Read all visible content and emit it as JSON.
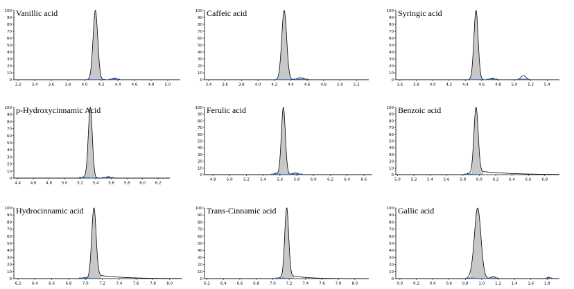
{
  "chart_data": [
    {
      "type": "line",
      "title": "Vanillic  acid",
      "x_ticks": [
        "3.2",
        "3.4",
        "3.6",
        "3.8",
        "4.0",
        "4.2",
        "4.4",
        "4.6",
        "4.8",
        "5.0"
      ],
      "xlim": [
        3.15,
        5.15
      ],
      "y_ticks": [
        "0",
        "10",
        "20",
        "30",
        "40",
        "50",
        "60",
        "70",
        "80",
        "90",
        "100"
      ],
      "ylim": [
        0,
        100
      ],
      "peak": {
        "center": 4.13,
        "sigma": 0.028,
        "height": 100,
        "tail": 0
      },
      "minor_peaks": [
        {
          "center": 4.36,
          "sigma": 0.03,
          "height": 2
        }
      ],
      "shaded": [
        4.04,
        4.25
      ]
    },
    {
      "type": "line",
      "title": "Caffeic acid",
      "x_ticks": [
        "3.4",
        "3.6",
        "3.8",
        "4.0",
        "4.2",
        "4.4",
        "4.6",
        "4.8",
        "5.0",
        "5.2"
      ],
      "xlim": [
        3.35,
        5.35
      ],
      "y_ticks": [
        "0",
        "10",
        "20",
        "30",
        "40",
        "50",
        "60",
        "70",
        "80",
        "90",
        "100"
      ],
      "ylim": [
        0,
        100
      ],
      "peak": {
        "center": 4.32,
        "sigma": 0.03,
        "height": 100,
        "tail": 0
      },
      "minor_peaks": [
        {
          "center": 4.52,
          "sigma": 0.04,
          "height": 3
        }
      ],
      "shaded": [
        4.22,
        4.45
      ]
    },
    {
      "type": "line",
      "title": "Syringic  acid",
      "x_ticks": [
        "3.6",
        "3.8",
        "4.0",
        "4.2",
        "4.4",
        "4.6",
        "4.8",
        "5.0",
        "5.2",
        "5.4"
      ],
      "xlim": [
        3.55,
        5.55
      ],
      "y_ticks": [
        "0",
        "10",
        "20",
        "30",
        "40",
        "50",
        "60",
        "70",
        "80",
        "90",
        "100"
      ],
      "ylim": [
        0,
        100
      ],
      "peak": {
        "center": 4.53,
        "sigma": 0.026,
        "height": 100,
        "tail": 0
      },
      "minor_peaks": [
        {
          "center": 4.73,
          "sigma": 0.03,
          "height": 2
        },
        {
          "center": 5.11,
          "sigma": 0.03,
          "height": 6
        }
      ],
      "shaded": [
        4.45,
        4.62
      ]
    },
    {
      "type": "line",
      "title": "p-Hydroxycinnamic Acid",
      "x_ticks": [
        "4.4",
        "4.6",
        "4.8",
        "5.0",
        "5.2",
        "5.4",
        "5.6",
        "5.8",
        "6.0",
        "6.2"
      ],
      "xlim": [
        4.35,
        6.35
      ],
      "y_ticks": [
        "0",
        "10",
        "20",
        "30",
        "40",
        "50",
        "60",
        "70",
        "80",
        "90",
        "100"
      ],
      "ylim": [
        0,
        100
      ],
      "peak": {
        "center": 5.33,
        "sigma": 0.026,
        "height": 100,
        "tail": 0
      },
      "minor_peaks": [
        {
          "center": 5.25,
          "sigma": 0.03,
          "height": 1.5
        },
        {
          "center": 5.56,
          "sigma": 0.035,
          "height": 2
        }
      ],
      "shaded": [
        5.26,
        5.43
      ]
    },
    {
      "type": "line",
      "title": "Ferulic acid",
      "x_ticks": [
        "4.8",
        "5.0",
        "5.2",
        "5.4",
        "5.6",
        "5.8",
        "6.0",
        "6.2",
        "6.4",
        "6.6"
      ],
      "xlim": [
        4.7,
        6.7
      ],
      "y_ticks": [
        "0",
        "10",
        "20",
        "30",
        "40",
        "50",
        "60",
        "70",
        "80",
        "90",
        "100"
      ],
      "ylim": [
        0,
        100
      ],
      "peak": {
        "center": 5.64,
        "sigma": 0.024,
        "height": 100,
        "tail": 0
      },
      "minor_peaks": [
        {
          "center": 5.55,
          "sigma": 0.025,
          "height": 2
        },
        {
          "center": 5.78,
          "sigma": 0.04,
          "height": 2.5
        }
      ],
      "shaded": [
        5.57,
        5.72
      ]
    },
    {
      "type": "line",
      "title": "Benzoic acid",
      "x_ticks": [
        "5.0",
        "5.2",
        "5.4",
        "5.6",
        "5.8",
        "6.0",
        "6.2",
        "6.4",
        "6.6",
        "6.8"
      ],
      "xlim": [
        4.98,
        6.98
      ],
      "y_ticks": [
        "0",
        "10",
        "20",
        "30",
        "40",
        "50",
        "60",
        "70",
        "80",
        "90",
        "100"
      ],
      "ylim": [
        0,
        100
      ],
      "peak": {
        "center": 5.96,
        "sigma": 0.026,
        "height": 100,
        "tail": 0.35
      },
      "minor_peaks": [
        {
          "center": 5.87,
          "sigma": 0.025,
          "height": 2
        }
      ],
      "shaded": [
        5.91,
        6.05
      ]
    },
    {
      "type": "line",
      "title": "Hydrocinnamic acid",
      "x_ticks": [
        "6.2",
        "6.4",
        "6.6",
        "6.8",
        "7.0",
        "7.2",
        "7.4",
        "7.6",
        "7.8",
        "8.0"
      ],
      "xlim": [
        6.15,
        8.15
      ],
      "y_ticks": [
        "0",
        "10",
        "20",
        "30",
        "40",
        "50",
        "60",
        "70",
        "80",
        "90",
        "100"
      ],
      "ylim": [
        0,
        100
      ],
      "peak": {
        "center": 7.1,
        "sigma": 0.026,
        "height": 100,
        "tail": 0.28
      },
      "minor_peaks": [
        {
          "center": 6.99,
          "sigma": 0.03,
          "height": 1.5
        }
      ],
      "shaded": [
        7.03,
        7.19
      ]
    },
    {
      "type": "line",
      "title": "Trans-Cinnamic acid",
      "x_ticks": [
        "6.2",
        "6.4",
        "6.6",
        "6.8",
        "7.0",
        "7.2",
        "7.4",
        "7.6",
        "7.8",
        "8.0"
      ],
      "xlim": [
        6.17,
        8.17
      ],
      "y_ticks": [
        "0",
        "10",
        "20",
        "30",
        "40",
        "50",
        "60",
        "70",
        "80",
        "90",
        "100"
      ],
      "ylim": [
        0,
        100
      ],
      "peak": {
        "center": 7.17,
        "sigma": 0.024,
        "height": 100,
        "tail": 0.18
      },
      "minor_peaks": [
        {
          "center": 7.09,
          "sigma": 0.025,
          "height": 1.5
        }
      ],
      "shaded": [
        7.11,
        7.26
      ]
    },
    {
      "type": "line",
      "title": "Gallic acid",
      "x_ticks": [
        "0.0",
        "0.2",
        "0.4",
        "0.6",
        "0.8",
        "1.0",
        "1.2",
        "1.4",
        "1.6",
        "1.8"
      ],
      "xlim": [
        -0.05,
        1.95
      ],
      "y_ticks": [
        "0",
        "10",
        "20",
        "30",
        "40",
        "50",
        "60",
        "70",
        "80",
        "90",
        "100"
      ],
      "ylim": [
        0,
        100
      ],
      "peak": {
        "center": 0.95,
        "sigma": 0.04,
        "height": 100,
        "tail": 0
      },
      "minor_peaks": [
        {
          "center": 0.86,
          "sigma": 0.025,
          "height": 2
        },
        {
          "center": 1.14,
          "sigma": 0.03,
          "height": 3
        },
        {
          "center": 1.82,
          "sigma": 0.02,
          "height": 2
        }
      ],
      "shaded": [
        0.86,
        1.06
      ]
    }
  ]
}
